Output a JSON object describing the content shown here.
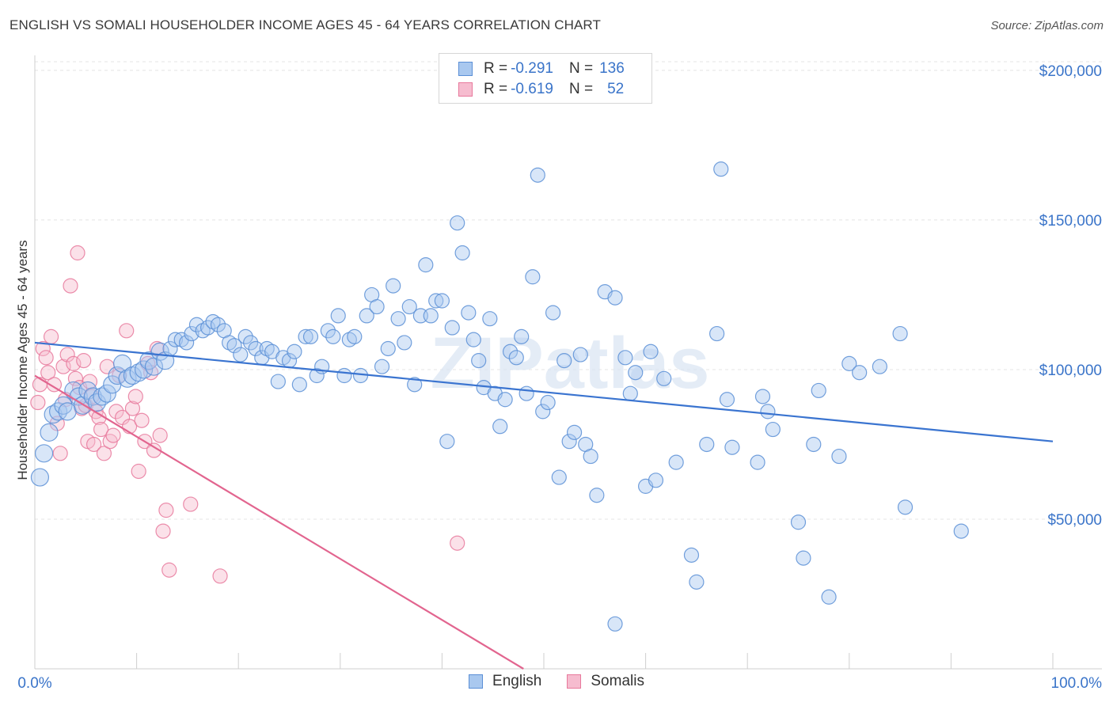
{
  "title": "ENGLISH VS SOMALI HOUSEHOLDER INCOME AGES 45 - 64 YEARS CORRELATION CHART",
  "source": "Source: ZipAtlas.com",
  "watermark": "ZIPatlas",
  "legend": {
    "english": {
      "r_label": "R =",
      "r_value": "-0.291",
      "n_label": "N =",
      "n_value": "136"
    },
    "somalis": {
      "r_label": "R =",
      "r_value": "-0.619",
      "n_label": "N =",
      "n_value": "52"
    }
  },
  "bottom_legend": {
    "english": "English",
    "somalis": "Somalis"
  },
  "colors": {
    "english_fill": "#a9c8ef",
    "english_stroke": "#5b8fd6",
    "english_line": "#3a74d0",
    "somali_fill": "#f6bccf",
    "somali_stroke": "#e8799c",
    "somali_line": "#e2658f",
    "axis_text": "#3a74c9",
    "grid": "#e4e4e4"
  },
  "chart_data": {
    "type": "scatter",
    "title": "ENGLISH VS SOMALI HOUSEHOLDER INCOME AGES 45 - 64 YEARS CORRELATION CHART",
    "xlabel": "",
    "ylabel": "Householder Income Ages 45 - 64 years",
    "xlim": [
      0,
      100
    ],
    "ylim": [
      0,
      205000
    ],
    "x_tick_labels": [
      "0.0%",
      "100.0%"
    ],
    "y_ticks": [
      50000,
      100000,
      150000,
      200000
    ],
    "y_tick_labels": [
      "$50,000",
      "$100,000",
      "$150,000",
      "$200,000"
    ],
    "grid": true,
    "legend_position": "top-center",
    "series": [
      {
        "name": "English",
        "r": -0.291,
        "n": 136,
        "trend": {
          "x": [
            0,
            100
          ],
          "y": [
            109000,
            76000
          ]
        },
        "points": [
          [
            0.5,
            64000
          ],
          [
            0.9,
            72000
          ],
          [
            1.4,
            79000
          ],
          [
            1.8,
            85000
          ],
          [
            2.3,
            86000
          ],
          [
            2.8,
            88000
          ],
          [
            3.2,
            86000
          ],
          [
            3.8,
            93000
          ],
          [
            4.3,
            91000
          ],
          [
            4.7,
            88000
          ],
          [
            5.2,
            93000
          ],
          [
            5.7,
            91000
          ],
          [
            6.1,
            89000
          ],
          [
            6.6,
            91000
          ],
          [
            7.1,
            92000
          ],
          [
            7.6,
            95000
          ],
          [
            8.1,
            98000
          ],
          [
            8.6,
            102000
          ],
          [
            9.1,
            97000
          ],
          [
            9.6,
            98000
          ],
          [
            10.2,
            99000
          ],
          [
            10.7,
            100000
          ],
          [
            11.2,
            103000
          ],
          [
            11.7,
            101000
          ],
          [
            12.3,
            106000
          ],
          [
            12.8,
            103000
          ],
          [
            13.3,
            107000
          ],
          [
            13.8,
            110000
          ],
          [
            14.4,
            110000
          ],
          [
            14.9,
            109000
          ],
          [
            15.4,
            112000
          ],
          [
            15.9,
            115000
          ],
          [
            16.5,
            113000
          ],
          [
            17.0,
            114000
          ],
          [
            17.5,
            116000
          ],
          [
            18.0,
            115000
          ],
          [
            18.6,
            113000
          ],
          [
            19.1,
            109000
          ],
          [
            19.6,
            108000
          ],
          [
            20.2,
            105000
          ],
          [
            20.7,
            111000
          ],
          [
            21.2,
            109000
          ],
          [
            21.7,
            107000
          ],
          [
            22.3,
            104000
          ],
          [
            22.8,
            107000
          ],
          [
            23.3,
            106000
          ],
          [
            23.9,
            96000
          ],
          [
            24.4,
            104000
          ],
          [
            25.0,
            103000
          ],
          [
            25.5,
            106000
          ],
          [
            26.0,
            95000
          ],
          [
            26.6,
            111000
          ],
          [
            27.1,
            111000
          ],
          [
            27.7,
            98000
          ],
          [
            28.2,
            101000
          ],
          [
            28.8,
            113000
          ],
          [
            29.3,
            111000
          ],
          [
            29.8,
            118000
          ],
          [
            30.4,
            98000
          ],
          [
            30.9,
            110000
          ],
          [
            31.4,
            111000
          ],
          [
            32.0,
            98000
          ],
          [
            32.6,
            118000
          ],
          [
            33.1,
            125000
          ],
          [
            33.6,
            121000
          ],
          [
            34.1,
            101000
          ],
          [
            34.7,
            107000
          ],
          [
            35.2,
            128000
          ],
          [
            35.7,
            117000
          ],
          [
            36.3,
            109000
          ],
          [
            36.8,
            121000
          ],
          [
            37.3,
            95000
          ],
          [
            37.9,
            118000
          ],
          [
            38.4,
            135000
          ],
          [
            38.9,
            118000
          ],
          [
            39.4,
            123000
          ],
          [
            40.0,
            123000
          ],
          [
            40.5,
            76000
          ],
          [
            41.0,
            114000
          ],
          [
            41.5,
            149000
          ],
          [
            42.0,
            139000
          ],
          [
            42.6,
            119000
          ],
          [
            43.1,
            110000
          ],
          [
            43.6,
            103000
          ],
          [
            44.1,
            94000
          ],
          [
            44.7,
            117000
          ],
          [
            45.2,
            92000
          ],
          [
            45.7,
            81000
          ],
          [
            46.2,
            90000
          ],
          [
            46.7,
            106000
          ],
          [
            47.3,
            104000
          ],
          [
            47.8,
            111000
          ],
          [
            48.3,
            92000
          ],
          [
            48.9,
            131000
          ],
          [
            49.4,
            165000
          ],
          [
            49.9,
            86000
          ],
          [
            50.4,
            89000
          ],
          [
            50.9,
            119000
          ],
          [
            51.5,
            64000
          ],
          [
            52.0,
            103000
          ],
          [
            52.5,
            76000
          ],
          [
            53.0,
            79000
          ],
          [
            53.6,
            105000
          ],
          [
            54.1,
            75000
          ],
          [
            54.6,
            71000
          ],
          [
            55.2,
            58000
          ],
          [
            56.0,
            126000
          ],
          [
            57.0,
            124000
          ],
          [
            58.0,
            104000
          ],
          [
            58.5,
            92000
          ],
          [
            59.0,
            99000
          ],
          [
            60.0,
            61000
          ],
          [
            60.5,
            106000
          ],
          [
            61.0,
            63000
          ],
          [
            61.8,
            97000
          ],
          [
            63.0,
            69000
          ],
          [
            64.5,
            38000
          ],
          [
            65.0,
            29000
          ],
          [
            66.0,
            75000
          ],
          [
            67.0,
            112000
          ],
          [
            67.4,
            167000
          ],
          [
            68.0,
            90000
          ],
          [
            68.5,
            74000
          ],
          [
            71.0,
            69000
          ],
          [
            71.5,
            91000
          ],
          [
            72.0,
            86000
          ],
          [
            72.5,
            80000
          ],
          [
            75.0,
            49000
          ],
          [
            75.5,
            37000
          ],
          [
            76.5,
            75000
          ],
          [
            77.0,
            93000
          ],
          [
            78.0,
            24000
          ],
          [
            79.0,
            71000
          ],
          [
            80.0,
            102000
          ],
          [
            81.0,
            99000
          ],
          [
            83.0,
            101000
          ],
          [
            85.0,
            112000
          ],
          [
            85.5,
            54000
          ],
          [
            91.0,
            46000
          ],
          [
            57.0,
            15000
          ]
        ]
      },
      {
        "name": "Somalis",
        "r": -0.619,
        "n": 52,
        "trend": {
          "x": [
            0,
            48
          ],
          "y": [
            98000,
            0
          ]
        },
        "points": [
          [
            0.3,
            89000
          ],
          [
            0.5,
            95000
          ],
          [
            0.8,
            107000
          ],
          [
            1.1,
            104000
          ],
          [
            1.3,
            99000
          ],
          [
            1.6,
            111000
          ],
          [
            1.9,
            95000
          ],
          [
            2.2,
            82000
          ],
          [
            2.5,
            72000
          ],
          [
            2.8,
            101000
          ],
          [
            3.0,
            90000
          ],
          [
            3.2,
            105000
          ],
          [
            3.5,
            128000
          ],
          [
            3.8,
            102000
          ],
          [
            4.0,
            97000
          ],
          [
            4.2,
            139000
          ],
          [
            4.4,
            94000
          ],
          [
            4.6,
            87000
          ],
          [
            4.8,
            103000
          ],
          [
            5.0,
            88000
          ],
          [
            5.2,
            76000
          ],
          [
            5.4,
            96000
          ],
          [
            5.6,
            91000
          ],
          [
            5.8,
            75000
          ],
          [
            6.0,
            86000
          ],
          [
            6.3,
            84000
          ],
          [
            6.5,
            80000
          ],
          [
            6.8,
            72000
          ],
          [
            7.1,
            101000
          ],
          [
            7.4,
            76000
          ],
          [
            7.7,
            78000
          ],
          [
            8.0,
            86000
          ],
          [
            8.3,
            98000
          ],
          [
            8.6,
            84000
          ],
          [
            9.0,
            113000
          ],
          [
            9.3,
            81000
          ],
          [
            9.6,
            87000
          ],
          [
            9.9,
            91000
          ],
          [
            10.2,
            66000
          ],
          [
            10.5,
            83000
          ],
          [
            10.8,
            76000
          ],
          [
            11.1,
            102000
          ],
          [
            11.4,
            99000
          ],
          [
            11.7,
            73000
          ],
          [
            12.0,
            107000
          ],
          [
            12.3,
            78000
          ],
          [
            12.6,
            46000
          ],
          [
            12.9,
            53000
          ],
          [
            13.2,
            33000
          ],
          [
            15.3,
            55000
          ],
          [
            18.2,
            31000
          ],
          [
            41.5,
            42000
          ]
        ]
      }
    ]
  }
}
